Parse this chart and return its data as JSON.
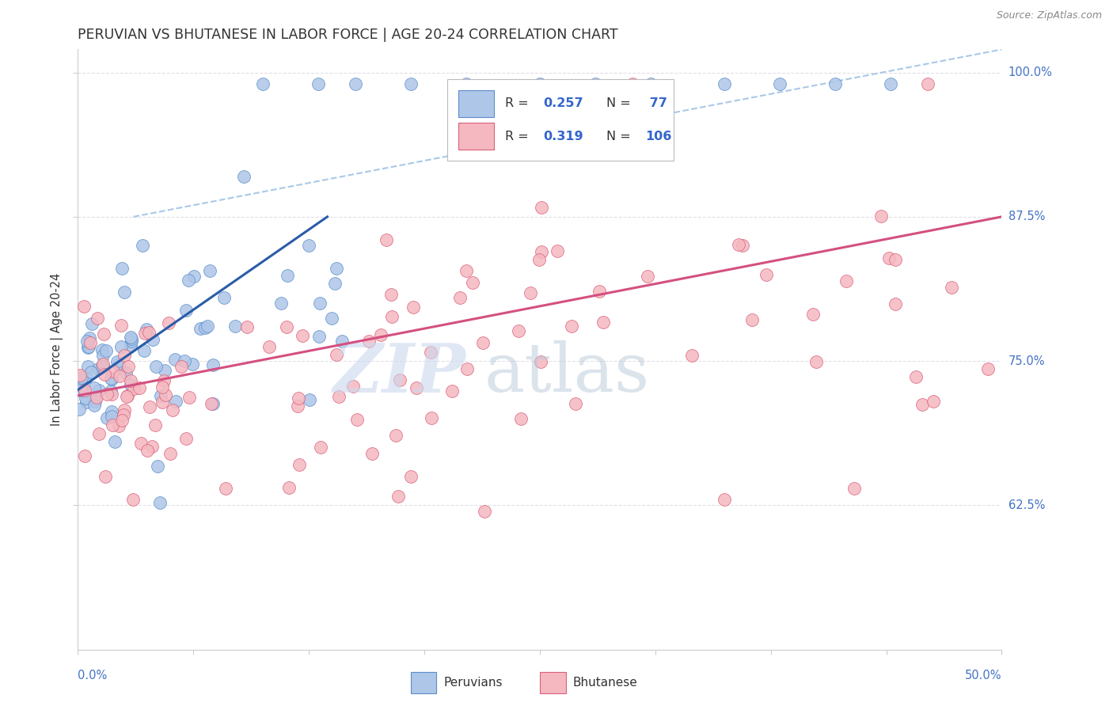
{
  "title": "PERUVIAN VS BHUTANESE IN LABOR FORCE | AGE 20-24 CORRELATION CHART",
  "source": "Source: ZipAtlas.com",
  "ylabel_label": "In Labor Force | Age 20-24",
  "xmin": 0.0,
  "xmax": 50.0,
  "ymin": 50.0,
  "ymax": 102.0,
  "yticks": [
    62.5,
    75.0,
    87.5,
    100.0
  ],
  "blue_color": "#aec6e8",
  "blue_edge": "#5b8ec9",
  "pink_color": "#f5b8c0",
  "pink_edge": "#d9607a",
  "blue_line_color": "#2a5ca8",
  "pink_line_color": "#d45080",
  "dash_color": "#aac8e8",
  "legend_text_color": "#333333",
  "axis_label_color": "#4472c4",
  "title_color": "#333333",
  "source_color": "#888888",
  "grid_color": "#e0e0e8",
  "blue_trend_x0": 0.0,
  "blue_trend_y0": 72.5,
  "blue_trend_x1": 13.5,
  "blue_trend_y1": 87.5,
  "pink_trend_x0": 0.0,
  "pink_trend_y0": 72.0,
  "pink_trend_x1": 50.0,
  "pink_trend_y1": 87.5,
  "dash_x0": 3.0,
  "dash_y0": 87.5,
  "dash_x1": 50.0,
  "dash_y1": 102.0
}
